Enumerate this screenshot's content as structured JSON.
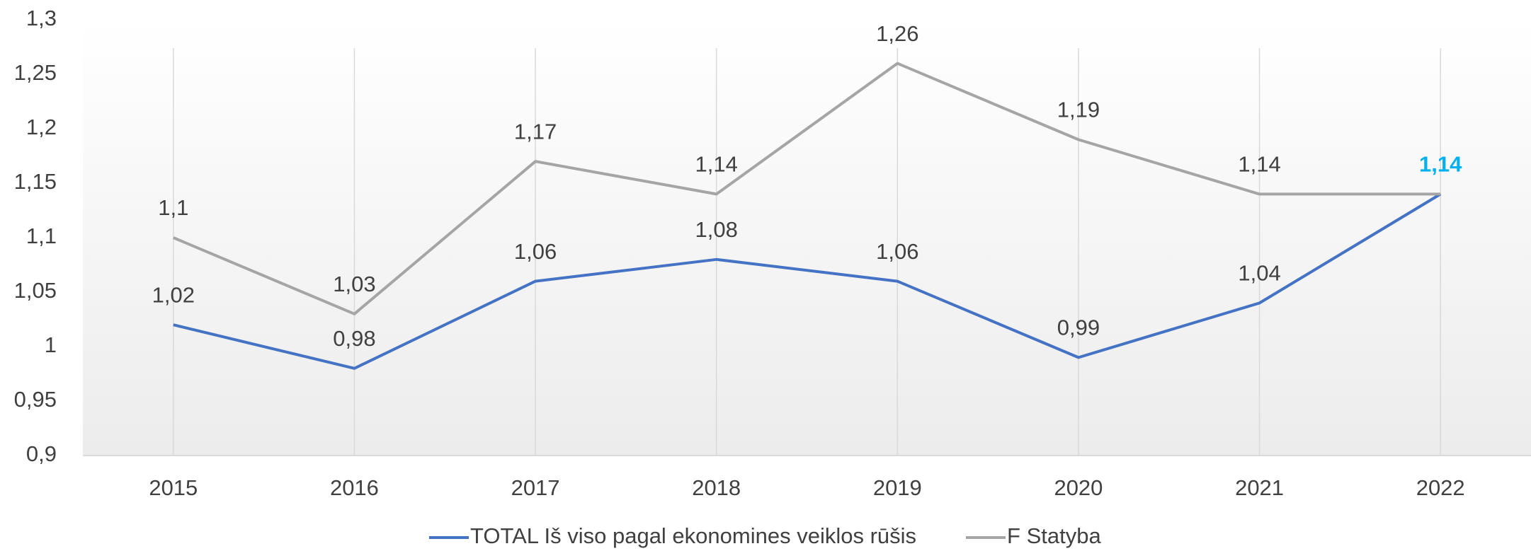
{
  "chart_data": {
    "type": "line",
    "categories": [
      "2015",
      "2016",
      "2017",
      "2018",
      "2019",
      "2020",
      "2021",
      "2022"
    ],
    "series": [
      {
        "name": "TOTAL Iš viso pagal ekonomines veiklos rūšis",
        "color": "#4472c4",
        "values": [
          1.02,
          0.98,
          1.06,
          1.08,
          1.06,
          0.99,
          1.04,
          1.14
        ],
        "value_labels": [
          "1,02",
          "0,98",
          "1,06",
          "1,08",
          "1,06",
          "0,99",
          "1,04",
          "1,14"
        ]
      },
      {
        "name": "F Statyba",
        "color": "#a5a5a5",
        "values": [
          1.1,
          1.03,
          1.17,
          1.14,
          1.26,
          1.19,
          1.14,
          1.14
        ],
        "value_labels": [
          "1,1",
          "1,03",
          "1,17",
          "1,14",
          "1,26",
          "1,19",
          "1,14",
          null
        ]
      }
    ],
    "highlight": {
      "series": 0,
      "index": 7,
      "color": "#00b0f0"
    },
    "ylim": [
      0.9,
      1.3
    ],
    "yticks": [
      {
        "value": 0.9,
        "label": "0,9"
      },
      {
        "value": 0.95,
        "label": "0,95"
      },
      1,
      {
        "value": 1.05,
        "label": "1,05"
      },
      {
        "value": 1.1,
        "label": "1,1"
      },
      {
        "value": 1.15,
        "label": "1,15"
      },
      {
        "value": 1.2,
        "label": "1,2"
      },
      {
        "value": 1.25,
        "label": "1,25"
      },
      {
        "value": 1.3,
        "label": "1,3"
      }
    ],
    "grid": "x",
    "legend": "bottom"
  }
}
